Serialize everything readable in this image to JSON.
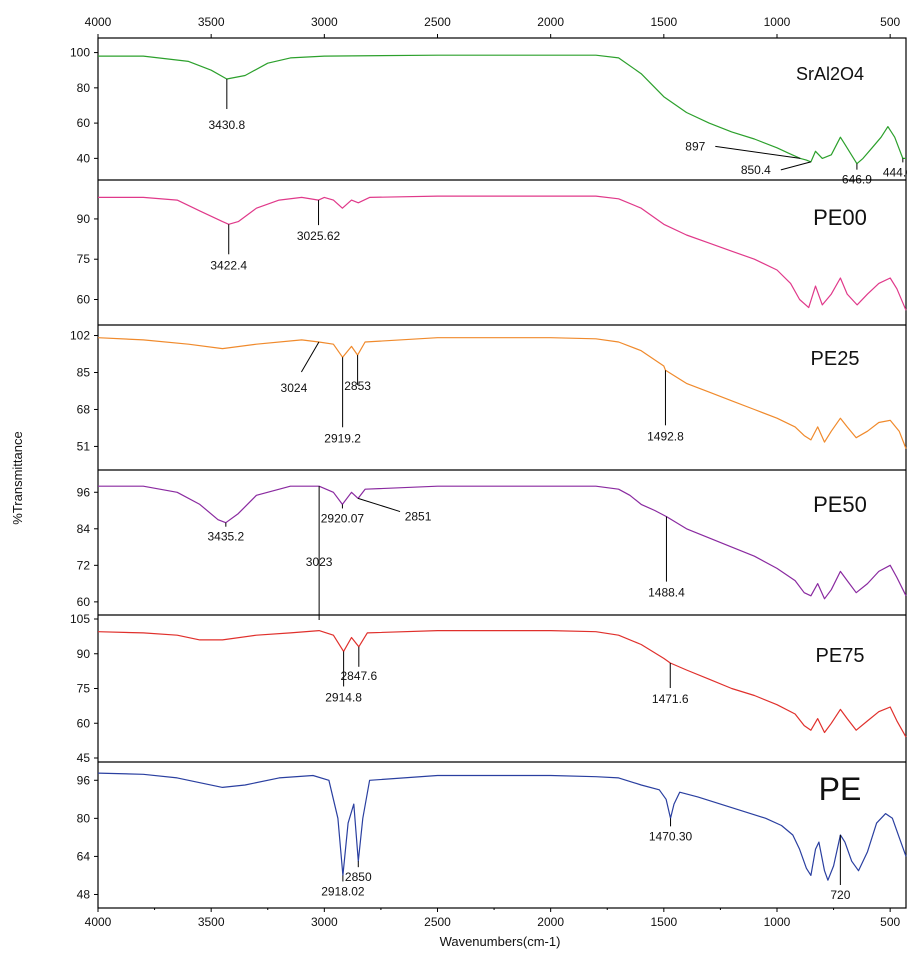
{
  "chart_data": {
    "type": "line",
    "xlabel": "Wavenumbers(cm-1)",
    "ylabel": "%Transmittance",
    "xlim": [
      4000,
      430
    ],
    "x_reversed": true,
    "x_ticks": [
      4000,
      3500,
      3000,
      2500,
      2000,
      1500,
      1000,
      500
    ],
    "grid": false,
    "panels": [
      {
        "name": "SrAl2O4",
        "label_size": 18,
        "color": "#2ca02c",
        "ylim": [
          30,
          106
        ],
        "yticks": [
          40,
          60,
          80,
          100
        ],
        "points": [
          [
            4000,
            98
          ],
          [
            3800,
            98
          ],
          [
            3600,
            95
          ],
          [
            3500,
            90
          ],
          [
            3430.8,
            85
          ],
          [
            3350,
            87
          ],
          [
            3250,
            94
          ],
          [
            3150,
            97
          ],
          [
            3000,
            98
          ],
          [
            2500,
            98.5
          ],
          [
            2000,
            98.5
          ],
          [
            1800,
            98.5
          ],
          [
            1700,
            97
          ],
          [
            1600,
            88
          ],
          [
            1500,
            75
          ],
          [
            1400,
            66
          ],
          [
            1300,
            60
          ],
          [
            1200,
            55
          ],
          [
            1100,
            51
          ],
          [
            1000,
            46
          ],
          [
            950,
            43
          ],
          [
            897,
            40
          ],
          [
            870,
            39
          ],
          [
            850.4,
            38
          ],
          [
            830,
            44
          ],
          [
            800,
            40
          ],
          [
            760,
            42
          ],
          [
            720,
            52
          ],
          [
            700,
            48
          ],
          [
            646.9,
            37
          ],
          [
            620,
            40
          ],
          [
            580,
            46
          ],
          [
            540,
            52
          ],
          [
            510,
            58
          ],
          [
            480,
            52
          ],
          [
            444.0,
            40
          ],
          [
            430,
            40
          ]
        ],
        "annotations": [
          {
            "label": "3430.8",
            "x": 3430.8
          },
          {
            "label": "897",
            "x": 897
          },
          {
            "label": "850.4",
            "x": 850.4
          },
          {
            "label": "646.9",
            "x": 646.9
          },
          {
            "label": "444.0",
            "x": 444.0
          }
        ]
      },
      {
        "name": "PE00",
        "label_size": 22,
        "color": "#e0398a",
        "ylim": [
          52,
          103
        ],
        "yticks": [
          60,
          75,
          90
        ],
        "points": [
          [
            4000,
            98
          ],
          [
            3800,
            98
          ],
          [
            3650,
            97
          ],
          [
            3550,
            93
          ],
          [
            3450,
            89
          ],
          [
            3422.4,
            88
          ],
          [
            3380,
            89
          ],
          [
            3300,
            94
          ],
          [
            3200,
            97
          ],
          [
            3100,
            98
          ],
          [
            3025.62,
            97
          ],
          [
            3000,
            98
          ],
          [
            2960,
            97
          ],
          [
            2920,
            94
          ],
          [
            2880,
            97
          ],
          [
            2850,
            96
          ],
          [
            2800,
            98
          ],
          [
            2500,
            98.5
          ],
          [
            2000,
            98.5
          ],
          [
            1800,
            98.5
          ],
          [
            1700,
            97.5
          ],
          [
            1600,
            94
          ],
          [
            1500,
            88
          ],
          [
            1400,
            84
          ],
          [
            1300,
            81
          ],
          [
            1200,
            78
          ],
          [
            1100,
            75
          ],
          [
            1000,
            71
          ],
          [
            940,
            66
          ],
          [
            900,
            60
          ],
          [
            860,
            57
          ],
          [
            830,
            65
          ],
          [
            800,
            58
          ],
          [
            760,
            62
          ],
          [
            720,
            68
          ],
          [
            690,
            62
          ],
          [
            646,
            58
          ],
          [
            600,
            62
          ],
          [
            550,
            66
          ],
          [
            500,
            68
          ],
          [
            470,
            64
          ],
          [
            430,
            56
          ]
        ],
        "annotations": [
          {
            "label": "3422.4",
            "x": 3422.4
          },
          {
            "label": "3025.62",
            "x": 3025.62
          }
        ]
      },
      {
        "name": "PE25",
        "label_size": 20,
        "color": "#f08a2c",
        "ylim": [
          42,
          105
        ],
        "yticks": [
          51,
          68,
          85,
          102
        ],
        "points": [
          [
            4000,
            101
          ],
          [
            3800,
            100
          ],
          [
            3600,
            98
          ],
          [
            3450,
            96
          ],
          [
            3300,
            98
          ],
          [
            3100,
            100
          ],
          [
            3024,
            99
          ],
          [
            2960,
            98
          ],
          [
            2919.2,
            92
          ],
          [
            2880,
            97
          ],
          [
            2853,
            93
          ],
          [
            2820,
            99
          ],
          [
            2500,
            101
          ],
          [
            2000,
            101
          ],
          [
            1800,
            100.5
          ],
          [
            1700,
            99
          ],
          [
            1600,
            95
          ],
          [
            1500,
            88
          ],
          [
            1492.8,
            86
          ],
          [
            1400,
            80
          ],
          [
            1300,
            76
          ],
          [
            1200,
            72
          ],
          [
            1100,
            68
          ],
          [
            1000,
            64
          ],
          [
            920,
            60
          ],
          [
            880,
            56
          ],
          [
            850,
            54
          ],
          [
            820,
            60
          ],
          [
            790,
            53
          ],
          [
            760,
            58
          ],
          [
            720,
            64
          ],
          [
            690,
            60
          ],
          [
            650,
            55
          ],
          [
            600,
            58
          ],
          [
            550,
            62
          ],
          [
            500,
            63
          ],
          [
            460,
            58
          ],
          [
            430,
            50
          ]
        ],
        "annotations": [
          {
            "label": "3024",
            "x": 3024
          },
          {
            "label": "2853",
            "x": 2853
          },
          {
            "label": "2919.2",
            "x": 2919.2
          },
          {
            "label": "1492.8",
            "x": 1492.8
          }
        ]
      },
      {
        "name": "PE50",
        "label_size": 22,
        "color": "#8a2aa0",
        "ylim": [
          57,
          102
        ],
        "yticks": [
          60,
          72,
          84,
          96
        ],
        "points": [
          [
            4000,
            98
          ],
          [
            3800,
            98
          ],
          [
            3650,
            96
          ],
          [
            3550,
            92
          ],
          [
            3470,
            87
          ],
          [
            3435.2,
            86
          ],
          [
            3380,
            89
          ],
          [
            3300,
            95
          ],
          [
            3150,
            98
          ],
          [
            3023,
            98
          ],
          [
            2960,
            96
          ],
          [
            2920.07,
            92
          ],
          [
            2880,
            96
          ],
          [
            2851,
            94
          ],
          [
            2820,
            97
          ],
          [
            2500,
            98
          ],
          [
            2000,
            98
          ],
          [
            1800,
            98
          ],
          [
            1700,
            97
          ],
          [
            1650,
            95
          ],
          [
            1600,
            92
          ],
          [
            1540,
            90
          ],
          [
            1488.4,
            88
          ],
          [
            1400,
            84
          ],
          [
            1300,
            81
          ],
          [
            1200,
            78
          ],
          [
            1100,
            75
          ],
          [
            1000,
            71
          ],
          [
            920,
            67
          ],
          [
            880,
            63
          ],
          [
            850,
            62
          ],
          [
            820,
            66
          ],
          [
            790,
            61
          ],
          [
            760,
            64
          ],
          [
            720,
            70
          ],
          [
            690,
            67
          ],
          [
            650,
            63
          ],
          [
            600,
            66
          ],
          [
            550,
            70
          ],
          [
            500,
            72
          ],
          [
            470,
            68
          ],
          [
            430,
            62
          ]
        ],
        "annotations": [
          {
            "label": "3435.2",
            "x": 3435.2
          },
          {
            "label": "2920.07",
            "x": 2920.07
          },
          {
            "label": "2851",
            "x": 2851
          },
          {
            "label": "3023",
            "x": 3023
          },
          {
            "label": "1488.4",
            "x": 1488.4
          }
        ]
      },
      {
        "name": "PE75",
        "label_size": 20,
        "color": "#e0302c",
        "ylim": [
          45,
          105
        ],
        "yticks": [
          45,
          60,
          75,
          90,
          105
        ],
        "points": [
          [
            4000,
            99.5
          ],
          [
            3800,
            99
          ],
          [
            3650,
            98
          ],
          [
            3550,
            96
          ],
          [
            3450,
            96
          ],
          [
            3300,
            98
          ],
          [
            3150,
            99
          ],
          [
            3023,
            100
          ],
          [
            2960,
            98
          ],
          [
            2914.8,
            91
          ],
          [
            2880,
            97
          ],
          [
            2847.6,
            93
          ],
          [
            2810,
            99
          ],
          [
            2500,
            100
          ],
          [
            2000,
            100
          ],
          [
            1800,
            99.5
          ],
          [
            1700,
            98
          ],
          [
            1600,
            94
          ],
          [
            1500,
            88
          ],
          [
            1471.6,
            86
          ],
          [
            1400,
            83
          ],
          [
            1300,
            79
          ],
          [
            1200,
            75
          ],
          [
            1100,
            72
          ],
          [
            1000,
            68
          ],
          [
            920,
            64
          ],
          [
            880,
            59
          ],
          [
            850,
            57
          ],
          [
            820,
            62
          ],
          [
            790,
            56
          ],
          [
            760,
            60
          ],
          [
            720,
            66
          ],
          [
            690,
            62
          ],
          [
            650,
            57
          ],
          [
            600,
            61
          ],
          [
            550,
            65
          ],
          [
            500,
            67
          ],
          [
            470,
            61
          ],
          [
            430,
            54
          ]
        ],
        "annotations": [
          {
            "label": "2914.8",
            "x": 2914.8
          },
          {
            "label": "2847.6",
            "x": 2847.6
          },
          {
            "label": "1471.6",
            "x": 1471.6
          }
        ]
      },
      {
        "name": "PE",
        "label_size": 32,
        "color": "#2a3fa0",
        "ylim": [
          44,
          102
        ],
        "yticks": [
          48,
          64,
          80,
          96
        ],
        "points": [
          [
            4000,
            99
          ],
          [
            3800,
            98.5
          ],
          [
            3650,
            97
          ],
          [
            3550,
            95
          ],
          [
            3450,
            93
          ],
          [
            3350,
            94
          ],
          [
            3200,
            97
          ],
          [
            3050,
            98
          ],
          [
            2980,
            96
          ],
          [
            2940,
            80
          ],
          [
            2918.02,
            56
          ],
          [
            2895,
            78
          ],
          [
            2870,
            86
          ],
          [
            2850,
            62
          ],
          [
            2830,
            80
          ],
          [
            2800,
            96
          ],
          [
            2500,
            98
          ],
          [
            2000,
            98
          ],
          [
            1800,
            97.5
          ],
          [
            1700,
            97
          ],
          [
            1600,
            94
          ],
          [
            1520,
            92
          ],
          [
            1490,
            88
          ],
          [
            1470.3,
            80
          ],
          [
            1455,
            86
          ],
          [
            1430,
            91
          ],
          [
            1350,
            89
          ],
          [
            1250,
            86
          ],
          [
            1150,
            83
          ],
          [
            1050,
            80
          ],
          [
            980,
            77
          ],
          [
            930,
            73
          ],
          [
            900,
            67
          ],
          [
            870,
            59
          ],
          [
            850,
            56
          ],
          [
            830,
            67
          ],
          [
            815,
            70
          ],
          [
            790,
            58
          ],
          [
            775,
            54
          ],
          [
            750,
            60
          ],
          [
            720,
            73
          ],
          [
            700,
            70
          ],
          [
            670,
            62
          ],
          [
            640,
            58
          ],
          [
            600,
            66
          ],
          [
            560,
            78
          ],
          [
            520,
            82
          ],
          [
            490,
            80
          ],
          [
            460,
            72
          ],
          [
            430,
            64
          ]
        ],
        "annotations": [
          {
            "label": "2918.02",
            "x": 2918.02
          },
          {
            "label": "2850",
            "x": 2850
          },
          {
            "label": "1470.30",
            "x": 1470.3
          },
          {
            "label": "720",
            "x": 720
          }
        ]
      }
    ]
  }
}
